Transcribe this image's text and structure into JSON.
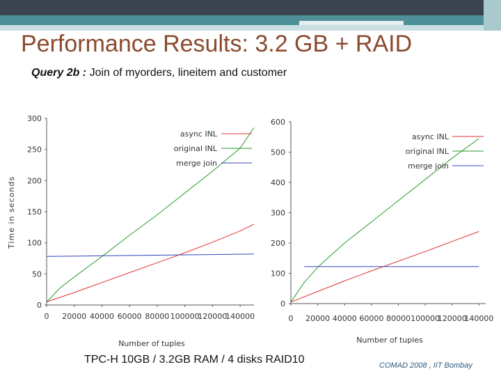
{
  "slide": {
    "title": "Performance Results: 3.2 GB + RAID",
    "subtitle_query": "Query 2b :",
    "subtitle_desc": " Join of myorders, lineitem and customer",
    "caption": "TPC-H 10GB / 3.2GB RAM / 4 disks RAID10",
    "footer": "COMAD 2008 , IIT Bombay"
  },
  "chart_data": [
    {
      "type": "line",
      "xlabel": "Number of tuples",
      "ylabel": "Time in seconds",
      "xlim": [
        0,
        150000
      ],
      "ylim": [
        0,
        300
      ],
      "xticks": [
        "0",
        "20000",
        "40000",
        "60000",
        "80000",
        "100000",
        "120000",
        "140000"
      ],
      "yticks": [
        "0",
        "50",
        "100",
        "150",
        "200",
        "250",
        "300"
      ],
      "legend_position": "top-right",
      "grid": false,
      "series": [
        {
          "name": "async INL",
          "color": "#e03030",
          "x": [
            0,
            20000,
            40000,
            60000,
            80000,
            100000,
            120000,
            140000,
            150000
          ],
          "y": [
            5,
            20,
            36,
            52,
            68,
            84,
            101,
            119,
            130
          ]
        },
        {
          "name": "original INL",
          "color": "#2a9a2a",
          "x": [
            0,
            10000,
            20000,
            40000,
            60000,
            80000,
            100000,
            120000,
            140000,
            150000
          ],
          "y": [
            5,
            28,
            45,
            78,
            112,
            145,
            180,
            215,
            252,
            285
          ]
        },
        {
          "name": "merge join",
          "color": "#3344bb",
          "x": [
            0,
            40000,
            80000,
            120000,
            150000
          ],
          "y": [
            78,
            79,
            80,
            81,
            82
          ]
        }
      ]
    },
    {
      "type": "line",
      "xlabel": "Number of tuples",
      "ylabel": "",
      "xlim": [
        0,
        145000
      ],
      "ylim": [
        0,
        600
      ],
      "xticks": [
        "0",
        "20000",
        "40000",
        "60000",
        "80000",
        "100000",
        "120000",
        "140000"
      ],
      "yticks": [
        "0",
        "100",
        "200",
        "300",
        "400",
        "500",
        "600"
      ],
      "legend_position": "top-right",
      "grid": false,
      "series": [
        {
          "name": "async INL",
          "color": "#e03030",
          "x": [
            0,
            20000,
            40000,
            60000,
            80000,
            100000,
            120000,
            140000
          ],
          "y": [
            5,
            40,
            75,
            108,
            140,
            172,
            205,
            238
          ]
        },
        {
          "name": "original INL",
          "color": "#2a9a2a",
          "x": [
            0,
            10000,
            20000,
            40000,
            60000,
            80000,
            100000,
            120000,
            140000
          ],
          "y": [
            5,
            70,
            120,
            200,
            270,
            340,
            410,
            480,
            545
          ]
        },
        {
          "name": "merge join",
          "color": "#3344bb",
          "x": [
            10000,
            40000,
            80000,
            120000,
            140000
          ],
          "y": [
            122,
            122,
            122,
            122,
            122
          ]
        }
      ]
    }
  ]
}
